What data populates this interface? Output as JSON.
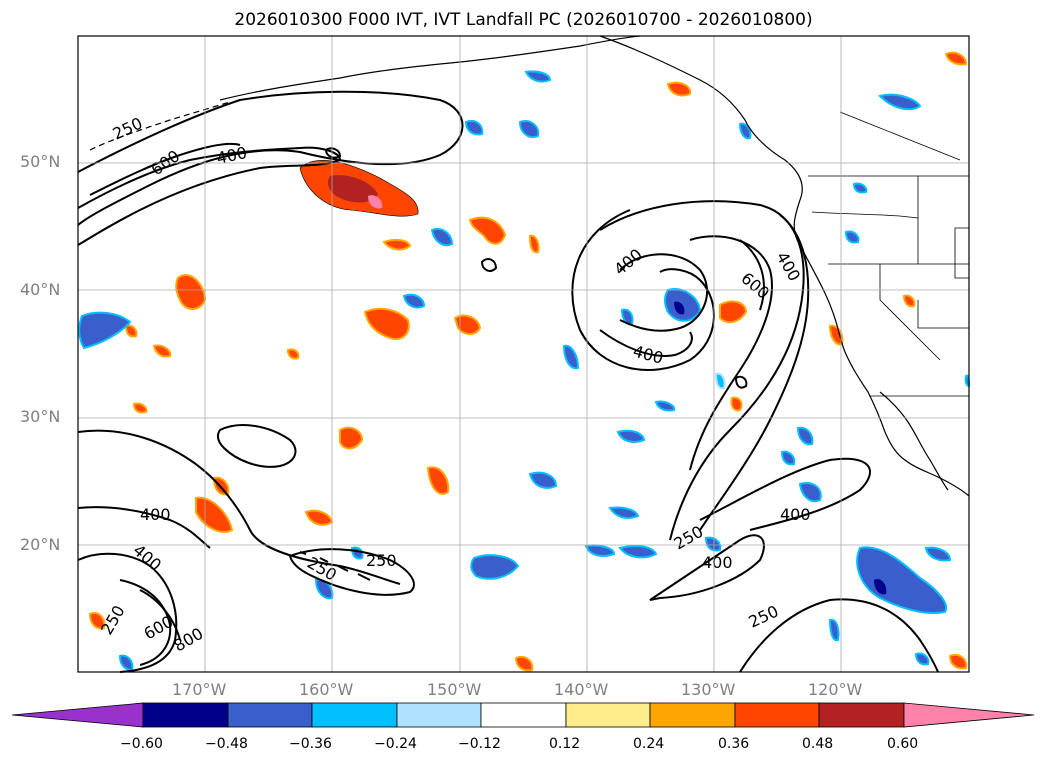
{
  "title": "2026010300 F000 IVT, IVT Landfall PC (2026010700 - 2026010800)",
  "lat_labels": [
    "50°N",
    "40°N",
    "30°N",
    "20°N"
  ],
  "lon_labels": [
    "170°W",
    "160°W",
    "150°W",
    "140°W",
    "130°W",
    "120°W"
  ],
  "contour_labels": [
    "250",
    "600",
    "400",
    "400",
    "400",
    "600",
    "400",
    "400",
    "250",
    "400",
    "250",
    "400",
    "250",
    "800",
    "600",
    "400",
    "250",
    "250"
  ],
  "colorbar": {
    "labels": [
      "−0.60",
      "−0.48",
      "−0.36",
      "−0.24",
      "−0.12",
      "0.12",
      "0.24",
      "0.36",
      "0.48",
      "0.60"
    ],
    "colors": [
      "#9932CC",
      "#00008B",
      "#3A5FCD",
      "#00BFFF",
      "#B0E2FF",
      "#FFFFFF",
      "#FFEC8B",
      "#FFA500",
      "#FF4500",
      "#B22222",
      "#FF82AB"
    ]
  }
}
